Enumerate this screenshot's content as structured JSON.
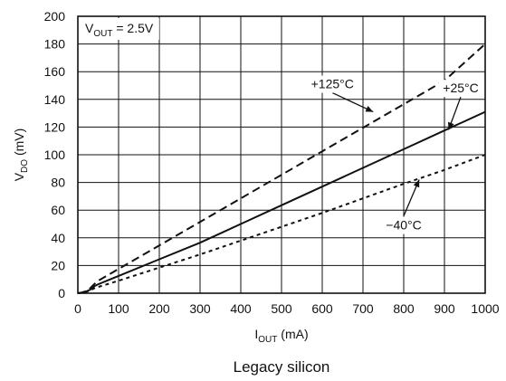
{
  "chart_data": {
    "type": "line",
    "title": "",
    "caption": "Legacy silicon",
    "condition": {
      "prefix": "V",
      "sub": "OUT",
      "suffix": " = 2.5V"
    },
    "xlabel": {
      "prefix": "I",
      "sub": "OUT",
      "suffix": " (mA)"
    },
    "ylabel": {
      "prefix": "V",
      "sub": "DO",
      "suffix": " (mV)"
    },
    "xlim": [
      0,
      1000
    ],
    "ylim": [
      0,
      200
    ],
    "xticks": [
      0,
      100,
      200,
      300,
      400,
      500,
      600,
      700,
      800,
      900,
      1000
    ],
    "yticks": [
      0,
      20,
      40,
      60,
      80,
      100,
      120,
      140,
      160,
      180,
      200
    ],
    "grid": true,
    "colors": {
      "line": "#111111",
      "grid": "#111111",
      "background": "#ffffff"
    },
    "series": [
      {
        "name": "+125°C",
        "style": "dashed",
        "points": [
          [
            0,
            0
          ],
          [
            10,
            0.5
          ],
          [
            20,
            1.5
          ],
          [
            30,
            3.5
          ],
          [
            40,
            6.5
          ],
          [
            50,
            9
          ],
          [
            100,
            17.5
          ],
          [
            200,
            34.5
          ],
          [
            300,
            51.5
          ],
          [
            400,
            68.5
          ],
          [
            500,
            85.5
          ],
          [
            600,
            102.5
          ],
          [
            700,
            119.5
          ],
          [
            800,
            136.5
          ],
          [
            900,
            153.5
          ],
          [
            1000,
            180
          ]
        ],
        "label": {
          "text": "+125°C",
          "x": 625,
          "y": 148,
          "arrow_to": [
            725,
            131
          ]
        }
      },
      {
        "name": "+25°C",
        "style": "solid",
        "points": [
          [
            0,
            0
          ],
          [
            10,
            0.5
          ],
          [
            20,
            1.2
          ],
          [
            30,
            2.5
          ],
          [
            40,
            5
          ],
          [
            50,
            6.5
          ],
          [
            100,
            12.5
          ],
          [
            200,
            24.5
          ],
          [
            300,
            36.5
          ],
          [
            400,
            50
          ],
          [
            500,
            63.5
          ],
          [
            600,
            77
          ],
          [
            700,
            90.5
          ],
          [
            800,
            104
          ],
          [
            900,
            117.5
          ],
          [
            1000,
            131
          ]
        ],
        "label": {
          "text": "+25°C",
          "x": 940,
          "y": 145,
          "arrow_to": [
            910,
            118
          ]
        }
      },
      {
        "name": "−40°C",
        "style": "dotted",
        "points": [
          [
            0,
            0
          ],
          [
            10,
            0.4
          ],
          [
            20,
            1
          ],
          [
            30,
            2
          ],
          [
            40,
            3.5
          ],
          [
            50,
            4.5
          ],
          [
            100,
            9
          ],
          [
            200,
            18.5
          ],
          [
            300,
            28
          ],
          [
            400,
            38
          ],
          [
            500,
            48
          ],
          [
            600,
            58
          ],
          [
            700,
            68.5
          ],
          [
            800,
            79
          ],
          [
            900,
            89
          ],
          [
            1000,
            100
          ]
        ],
        "label": {
          "text": "−40°C",
          "x": 800,
          "y": 46,
          "arrow_to": [
            838,
            82
          ]
        }
      }
    ]
  }
}
